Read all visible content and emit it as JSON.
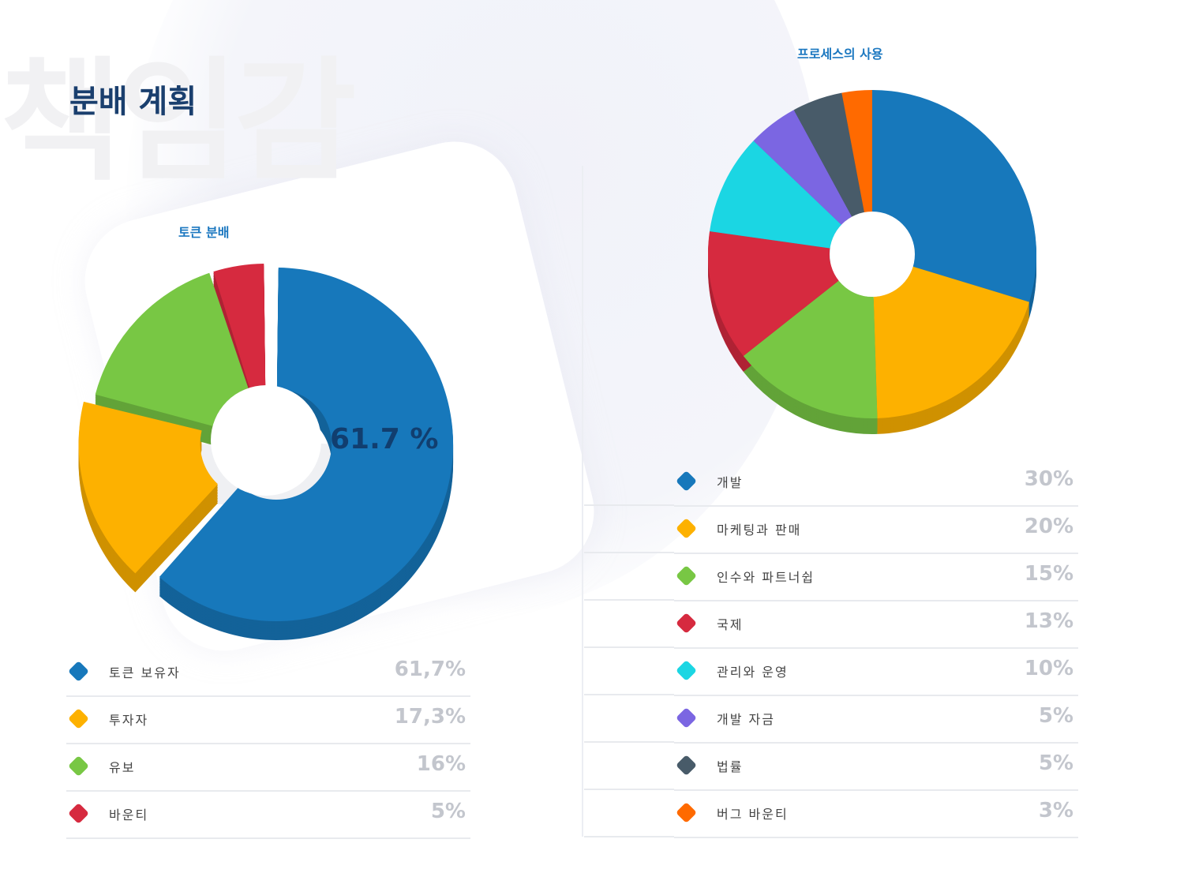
{
  "watermark": "책임감",
  "title": "분배 계획",
  "chart_data": [
    {
      "type": "pie",
      "title": "토큰 분배",
      "center_label": "61.7 %",
      "slices": [
        {
          "label": "토큰 보유자",
          "value": 61.7,
          "display": "61,7%",
          "color": "#1778bb",
          "exploded": true
        },
        {
          "label": "투자자",
          "value": 17.3,
          "display": "17,3%",
          "color": "#fdb100",
          "exploded": true
        },
        {
          "label": "유보",
          "value": 16,
          "display": "16%",
          "color": "#78c744",
          "exploded": false
        },
        {
          "label": "바운티",
          "value": 5,
          "display": "5%",
          "color": "#d62a3f",
          "exploded": false
        }
      ]
    },
    {
      "type": "pie",
      "title": "프로세스의 사용",
      "slices": [
        {
          "label": "개발",
          "value": 30,
          "display": "30%",
          "color": "#1778bb"
        },
        {
          "label": "마케팅과 판매",
          "value": 20,
          "display": "20%",
          "color": "#fdb100"
        },
        {
          "label": "인수와 파트너쉽",
          "value": 15,
          "display": "15%",
          "color": "#78c744"
        },
        {
          "label": "국제",
          "value": 13,
          "display": "13%",
          "color": "#d62a3f"
        },
        {
          "label": "관리와 운영",
          "value": 10,
          "display": "10%",
          "color": "#1bd6e3"
        },
        {
          "label": "개발 자금",
          "value": 5,
          "display": "5%",
          "color": "#7b66e2"
        },
        {
          "label": "법률",
          "value": 5,
          "display": "5%",
          "color": "#485b69"
        },
        {
          "label": "버그 바운티",
          "value": 3,
          "display": "3%",
          "color": "#ff6a00"
        }
      ]
    }
  ]
}
